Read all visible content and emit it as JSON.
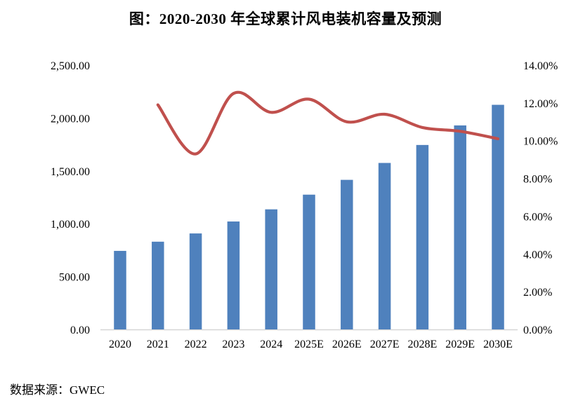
{
  "title": "图：2020-2030 年全球累计风电装机容量及预测",
  "source_note": "数据来源：GWEC",
  "colors": {
    "bar": "#4F81BD",
    "line": "#C0504D",
    "axis_line": "#D6D6D6",
    "text": "#000000",
    "background": "#FFFFFF"
  },
  "chart_data": {
    "type": "combo",
    "title": "图：2020-2030 年全球累计风电装机容量及预测",
    "categories": [
      "2020",
      "2021",
      "2022",
      "2023",
      "2024",
      "2025E",
      "2026E",
      "2027E",
      "2028E",
      "2029E",
      "2030E"
    ],
    "series": [
      {
        "type": "bar",
        "axis": "left",
        "color": "#4F81BD",
        "values": [
          743,
          830,
          908,
          1021,
          1136,
          1275,
          1415,
          1575,
          1745,
          1930,
          2125
        ]
      },
      {
        "type": "line",
        "axis": "right",
        "color": "#C0504D",
        "smooth": true,
        "values": [
          null,
          11.9,
          9.3,
          12.5,
          11.5,
          12.2,
          11.0,
          11.4,
          10.7,
          10.5,
          10.1
        ]
      }
    ],
    "left_axis": {
      "min": 0,
      "max": 2500,
      "tick_labels": [
        "2,500.00",
        "2,000.00",
        "1,500.00",
        "1,000.00",
        "500.00",
        "0.00"
      ]
    },
    "right_axis": {
      "min": 0,
      "max": 14,
      "tick_labels": [
        "14.00%",
        "12.00%",
        "10.00%",
        "8.00%",
        "6.00%",
        "4.00%",
        "2.00%",
        "0.00%"
      ]
    },
    "legend": "none",
    "gridlines": false
  }
}
